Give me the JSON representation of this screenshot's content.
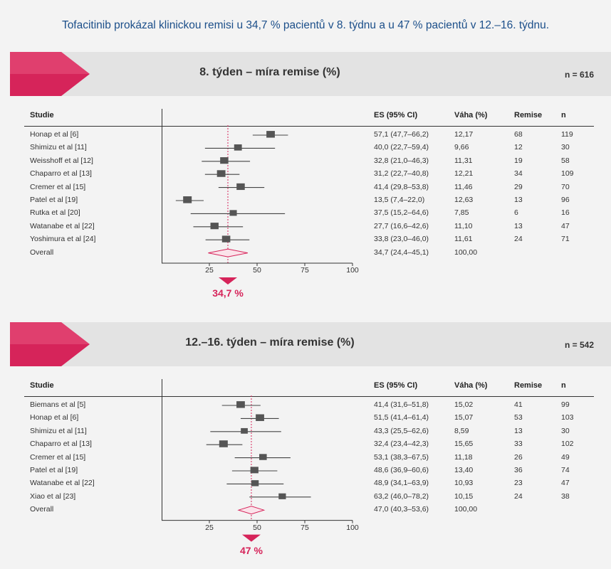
{
  "headline": "Tofacitinib prokázal klinickou remisi u 34,7 % pacientů v 8. týdnu a u 47 % pacientů v 12.–16. týdnu.",
  "colors": {
    "accent": "#d6245a",
    "headline": "#1c4f8a",
    "marker": "#555555"
  },
  "chart_data": [
    {
      "type": "forest",
      "title": "8. týden – míra remise (%)",
      "n_label": "n = 616",
      "headers": {
        "study": "Studie",
        "es": "ES (95% CI)",
        "weight": "Váha (%)",
        "remise": "Remise",
        "n": "n"
      },
      "xticks": [
        25,
        50,
        75,
        100
      ],
      "xlim": [
        0,
        100
      ],
      "reference": 34.7,
      "reference_label": "34,7 %",
      "studies": [
        {
          "study": "Honap et al [6]",
          "es": 57.1,
          "lo": 47.7,
          "hi": 66.2,
          "es_text": "57,1 (47,7–66,2)",
          "weight": "12,17",
          "remise": "68",
          "n": "119"
        },
        {
          "study": "Shimizu et al [11]",
          "es": 40.0,
          "lo": 22.7,
          "hi": 59.4,
          "es_text": "40,0 (22,7–59,4)",
          "weight": "9,66",
          "remise": "12",
          "n": "30"
        },
        {
          "study": "Weisshoff et al [12]",
          "es": 32.8,
          "lo": 21.0,
          "hi": 46.3,
          "es_text": "32,8 (21,0–46,3)",
          "weight": "11,31",
          "remise": "19",
          "n": "58"
        },
        {
          "study": "Chaparro et al [13]",
          "es": 31.2,
          "lo": 22.7,
          "hi": 40.8,
          "es_text": "31,2 (22,7–40,8)",
          "weight": "12,21",
          "remise": "34",
          "n": "109"
        },
        {
          "study": "Cremer et al [15]",
          "es": 41.4,
          "lo": 29.8,
          "hi": 53.8,
          "es_text": "41,4 (29,8–53,8)",
          "weight": "11,46",
          "remise": "29",
          "n": "70"
        },
        {
          "study": "Patel et al [19]",
          "es": 13.5,
          "lo": 7.4,
          "hi": 22.0,
          "es_text": "13,5 (7,4–22,0)",
          "weight": "12,63",
          "remise": "13",
          "n": "96"
        },
        {
          "study": "Rutka et al [20]",
          "es": 37.5,
          "lo": 15.2,
          "hi": 64.6,
          "es_text": "37,5 (15,2–64,6)",
          "weight": "7,85",
          "remise": "6",
          "n": "16"
        },
        {
          "study": "Watanabe et al [22]",
          "es": 27.7,
          "lo": 16.6,
          "hi": 42.6,
          "es_text": "27,7 (16,6–42,6)",
          "weight": "11,10",
          "remise": "13",
          "n": "47"
        },
        {
          "study": "Yoshimura et al [24]",
          "es": 33.8,
          "lo": 23.0,
          "hi": 46.0,
          "es_text": "33,8 (23,0–46,0)",
          "weight": "11,61",
          "remise": "24",
          "n": "71"
        }
      ],
      "overall": {
        "study": "Overall",
        "es": 34.7,
        "lo": 24.4,
        "hi": 45.1,
        "es_text": "34,7 (24,4–45,1)",
        "weight": "100,00"
      }
    },
    {
      "type": "forest",
      "title": "12.–16. týden – míra remise (%)",
      "n_label": "n = 542",
      "headers": {
        "study": "Studie",
        "es": "ES (95% CI)",
        "weight": "Váha (%)",
        "remise": "Remise",
        "n": "n"
      },
      "xticks": [
        25,
        50,
        75,
        100
      ],
      "xlim": [
        0,
        100
      ],
      "reference": 47.0,
      "reference_label": "47 %",
      "studies": [
        {
          "study": "Biemans et al [5]",
          "es": 41.4,
          "lo": 31.6,
          "hi": 51.8,
          "es_text": "41,4 (31,6–51,8)",
          "weight": "15,02",
          "remise": "41",
          "n": "99"
        },
        {
          "study": "Honap et al [6]",
          "es": 51.5,
          "lo": 41.4,
          "hi": 61.4,
          "es_text": "51,5 (41,4–61,4)",
          "weight": "15,07",
          "remise": "53",
          "n": "103"
        },
        {
          "study": "Shimizu et al [11]",
          "es": 43.3,
          "lo": 25.5,
          "hi": 62.6,
          "es_text": "43,3 (25,5–62,6)",
          "weight": "8,59",
          "remise": "13",
          "n": "30"
        },
        {
          "study": "Chaparro et al [13]",
          "es": 32.4,
          "lo": 23.4,
          "hi": 42.3,
          "es_text": "32,4 (23,4–42,3)",
          "weight": "15,65",
          "remise": "33",
          "n": "102"
        },
        {
          "study": "Cremer et al [15]",
          "es": 53.1,
          "lo": 38.3,
          "hi": 67.5,
          "es_text": "53,1 (38,3–67,5)",
          "weight": "11,18",
          "remise": "26",
          "n": "49"
        },
        {
          "study": "Patel et al [19]",
          "es": 48.6,
          "lo": 36.9,
          "hi": 60.6,
          "es_text": "48,6 (36,9–60,6)",
          "weight": "13,40",
          "remise": "36",
          "n": "74"
        },
        {
          "study": "Watanabe et al [22]",
          "es": 48.9,
          "lo": 34.1,
          "hi": 63.9,
          "es_text": "48,9 (34,1–63,9)",
          "weight": "10,93",
          "remise": "23",
          "n": "47"
        },
        {
          "study": "Xiao et al [23]",
          "es": 63.2,
          "lo": 46.0,
          "hi": 78.2,
          "es_text": "63,2 (46,0–78,2)",
          "weight": "10,15",
          "remise": "24",
          "n": "38"
        }
      ],
      "overall": {
        "study": "Overall",
        "es": 47.0,
        "lo": 40.3,
        "hi": 53.6,
        "es_text": "47,0 (40,3–53,6)",
        "weight": "100,00"
      }
    }
  ]
}
